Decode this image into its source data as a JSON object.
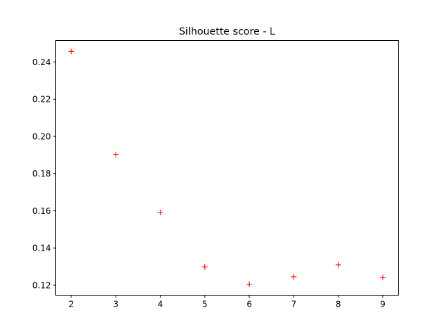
{
  "chart_data": {
    "type": "scatter",
    "title": "Silhouette score - L",
    "xlabel": "",
    "ylabel": "",
    "marker": "+",
    "marker_color": "#ff0000",
    "xlim": [
      1.65,
      9.35
    ],
    "ylim": [
      0.1146,
      0.2516
    ],
    "x_ticks": [
      "2",
      "3",
      "4",
      "5",
      "6",
      "7",
      "8",
      "9"
    ],
    "y_ticks": [
      "0.12",
      "0.14",
      "0.16",
      "0.18",
      "0.20",
      "0.22",
      "0.24"
    ],
    "grid": false,
    "legend": false,
    "points": [
      {
        "x": 2,
        "y": 0.2457
      },
      {
        "x": 3,
        "y": 0.1902
      },
      {
        "x": 4,
        "y": 0.1591
      },
      {
        "x": 5,
        "y": 0.1298
      },
      {
        "x": 6,
        "y": 0.1205
      },
      {
        "x": 7,
        "y": 0.1245
      },
      {
        "x": 8,
        "y": 0.1309
      },
      {
        "x": 9,
        "y": 0.1242
      }
    ]
  }
}
